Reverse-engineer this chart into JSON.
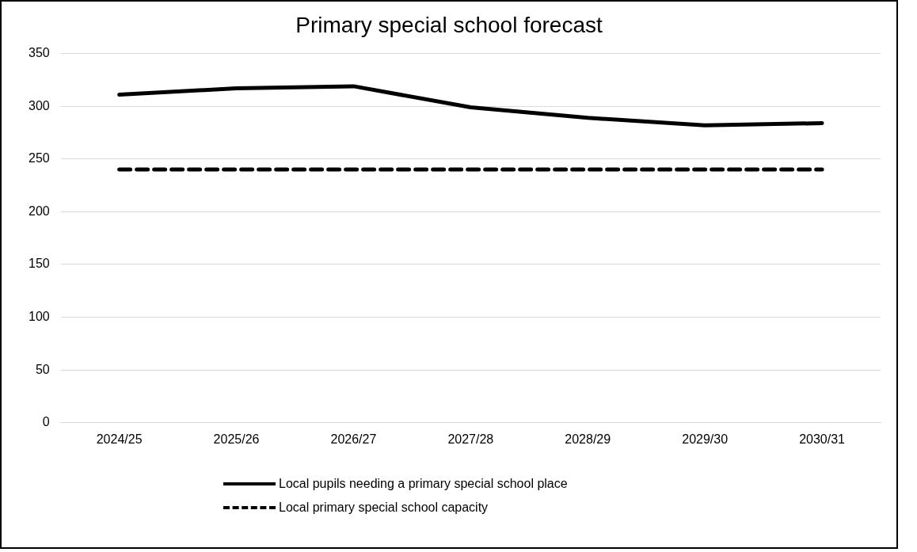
{
  "chart_data": {
    "type": "line",
    "title": "Primary special school forecast",
    "categories": [
      "2024/25",
      "2025/26",
      "2026/27",
      "2027/28",
      "2028/29",
      "2029/30",
      "2030/31"
    ],
    "series": [
      {
        "name": "Local pupils needing a primary special school place",
        "color": "#000000",
        "values": [
          311,
          317,
          319,
          299,
          289,
          282,
          284
        ],
        "line_style": "solid"
      },
      {
        "name": "Local primary special school capacity",
        "color": "#000000",
        "values": [
          240,
          240,
          240,
          240,
          240,
          240,
          240
        ],
        "line_style": "dashed"
      }
    ],
    "ylim": [
      0,
      350
    ],
    "yticks": [
      0,
      50,
      100,
      150,
      200,
      250,
      300,
      350
    ],
    "grid": "y",
    "legend": "bottom",
    "marker": "none"
  }
}
